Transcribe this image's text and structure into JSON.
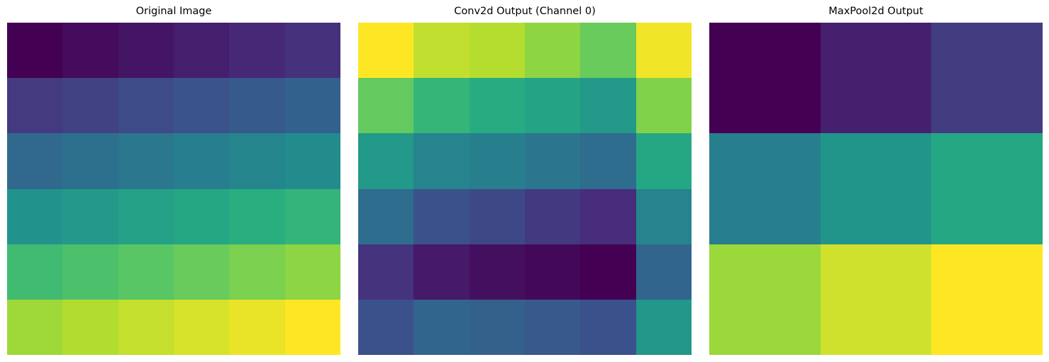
{
  "chart_data": [
    {
      "type": "heatmap",
      "title": "Original Image",
      "colormap": "viridis",
      "grid": false,
      "rows": 6,
      "cols": 6,
      "vmin": 0,
      "vmax": 35,
      "values": [
        [
          0,
          1,
          2,
          3,
          4,
          5
        ],
        [
          6,
          7,
          8,
          9,
          10,
          11
        ],
        [
          12,
          13,
          14,
          15,
          16,
          17
        ],
        [
          18,
          19,
          20,
          21,
          22,
          23
        ],
        [
          24,
          25,
          26,
          27,
          28,
          29
        ],
        [
          30,
          31,
          32,
          33,
          34,
          35
        ]
      ]
    },
    {
      "type": "heatmap",
      "title": "Conv2d Output (Channel 0)",
      "colormap": "viridis",
      "grid": false,
      "rows": 6,
      "cols": 6,
      "vmin": 0,
      "vmax": 1,
      "values": [
        [
          1.0,
          0.91,
          0.89,
          0.83,
          0.77,
          0.98
        ],
        [
          0.76,
          0.66,
          0.62,
          0.58,
          0.54,
          0.81
        ],
        [
          0.54,
          0.45,
          0.43,
          0.39,
          0.36,
          0.6
        ],
        [
          0.36,
          0.25,
          0.22,
          0.17,
          0.13,
          0.45
        ],
        [
          0.15,
          0.07,
          0.04,
          0.02,
          0.0,
          0.33
        ],
        [
          0.25,
          0.33,
          0.31,
          0.28,
          0.25,
          0.53
        ]
      ]
    },
    {
      "type": "heatmap",
      "title": "MaxPool2d Output",
      "colormap": "viridis",
      "grid": false,
      "rows": 3,
      "cols": 3,
      "vmin": 0,
      "vmax": 1,
      "values": [
        [
          0.0,
          0.09,
          0.18
        ],
        [
          0.43,
          0.52,
          0.6
        ],
        [
          0.85,
          0.93,
          1.0
        ]
      ]
    }
  ]
}
